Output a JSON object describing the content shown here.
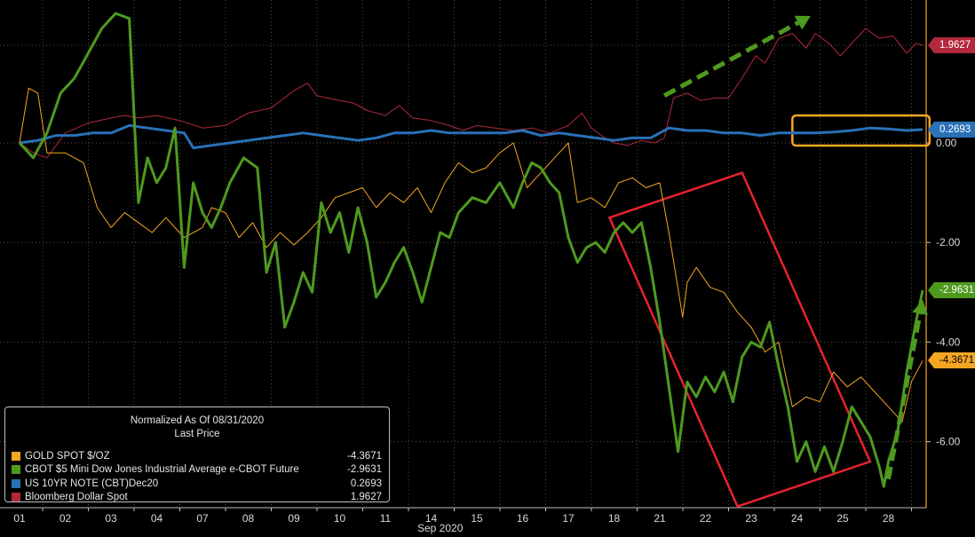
{
  "chart_data": {
    "type": "line",
    "legend": {
      "title_line1": "Normalized As Of 08/31/2020",
      "title_line2": "Last Price",
      "placement": "bottom-left"
    },
    "xlabel": "Sep 2020",
    "x_ticks": [
      "01",
      "02",
      "03",
      "04",
      "07",
      "08",
      "09",
      "10",
      "11",
      "14",
      "15",
      "16",
      "17",
      "18",
      "21",
      "22",
      "23",
      "24",
      "25",
      "28"
    ],
    "y_ticks": [
      "0.00",
      "-2.00",
      "-4.00",
      "-6.00"
    ],
    "y_tick_values": [
      0,
      -2,
      -4,
      -6
    ],
    "ylim": [
      -7.4,
      2.85
    ],
    "grid": true,
    "series": [
      {
        "name": "Bloomberg Dollar Spot",
        "last": "1.9627",
        "color": "#b3283c",
        "style": "thin",
        "points": [
          [
            0,
            0.0
          ],
          [
            0.3,
            -0.2
          ],
          [
            0.6,
            -0.3
          ],
          [
            1.0,
            0.2
          ],
          [
            1.5,
            0.4
          ],
          [
            2.0,
            0.5
          ],
          [
            2.3,
            0.55
          ],
          [
            2.6,
            0.5
          ],
          [
            3.0,
            0.55
          ],
          [
            3.5,
            0.45
          ],
          [
            4.0,
            0.3
          ],
          [
            4.5,
            0.35
          ],
          [
            5.0,
            0.6
          ],
          [
            5.5,
            0.7
          ],
          [
            6.0,
            1.05
          ],
          [
            6.3,
            1.2
          ],
          [
            6.5,
            0.95
          ],
          [
            7.0,
            0.85
          ],
          [
            7.3,
            0.8
          ],
          [
            7.6,
            0.65
          ],
          [
            8.0,
            0.55
          ],
          [
            8.3,
            0.75
          ],
          [
            8.6,
            0.5
          ],
          [
            9.0,
            0.45
          ],
          [
            9.4,
            0.35
          ],
          [
            9.7,
            0.25
          ],
          [
            10.0,
            0.35
          ],
          [
            10.4,
            0.3
          ],
          [
            10.8,
            0.25
          ],
          [
            11.2,
            0.3
          ],
          [
            11.6,
            0.2
          ],
          [
            12.0,
            0.35
          ],
          [
            12.3,
            0.6
          ],
          [
            12.5,
            0.3
          ],
          [
            12.8,
            0.1
          ],
          [
            13.0,
            0.0
          ],
          [
            13.3,
            -0.05
          ],
          [
            13.6,
            0.05
          ],
          [
            13.9,
            0.0
          ],
          [
            14.1,
            0.1
          ],
          [
            14.3,
            0.9
          ],
          [
            14.6,
            1.0
          ],
          [
            14.9,
            0.85
          ],
          [
            15.2,
            0.9
          ],
          [
            15.5,
            0.9
          ],
          [
            15.8,
            1.3
          ],
          [
            16.1,
            1.75
          ],
          [
            16.3,
            1.6
          ],
          [
            16.6,
            2.1
          ],
          [
            16.9,
            2.2
          ],
          [
            17.2,
            1.9
          ],
          [
            17.4,
            2.2
          ],
          [
            17.7,
            2.0
          ],
          [
            17.95,
            1.75
          ],
          [
            18.2,
            2.0
          ],
          [
            18.5,
            2.3
          ],
          [
            18.8,
            2.1
          ],
          [
            19.1,
            2.15
          ],
          [
            19.4,
            1.8
          ],
          [
            19.6,
            2.0
          ],
          [
            19.75,
            1.96
          ]
        ]
      },
      {
        "name": "US 10YR NOTE (CBT)Dec20",
        "last": "0.2693",
        "color": "#2a71b8",
        "style": "thick",
        "points": [
          [
            0,
            0.0
          ],
          [
            0.4,
            0.05
          ],
          [
            0.8,
            0.15
          ],
          [
            1.2,
            0.15
          ],
          [
            1.6,
            0.2
          ],
          [
            2.0,
            0.2
          ],
          [
            2.4,
            0.35
          ],
          [
            2.8,
            0.3
          ],
          [
            3.2,
            0.25
          ],
          [
            3.6,
            0.2
          ],
          [
            3.8,
            -0.1
          ],
          [
            4.2,
            -0.05
          ],
          [
            4.6,
            0.0
          ],
          [
            5.0,
            0.05
          ],
          [
            5.4,
            0.1
          ],
          [
            5.8,
            0.15
          ],
          [
            6.2,
            0.2
          ],
          [
            6.6,
            0.15
          ],
          [
            7.0,
            0.1
          ],
          [
            7.4,
            0.05
          ],
          [
            7.8,
            0.1
          ],
          [
            8.2,
            0.2
          ],
          [
            8.6,
            0.2
          ],
          [
            9.0,
            0.25
          ],
          [
            9.4,
            0.2
          ],
          [
            9.8,
            0.2
          ],
          [
            10.2,
            0.2
          ],
          [
            10.6,
            0.2
          ],
          [
            11.0,
            0.25
          ],
          [
            11.4,
            0.15
          ],
          [
            11.8,
            0.2
          ],
          [
            12.2,
            0.15
          ],
          [
            12.6,
            0.1
          ],
          [
            13.0,
            0.05
          ],
          [
            13.4,
            0.1
          ],
          [
            13.8,
            0.1
          ],
          [
            14.2,
            0.3
          ],
          [
            14.6,
            0.25
          ],
          [
            15.0,
            0.25
          ],
          [
            15.4,
            0.2
          ],
          [
            15.8,
            0.2
          ],
          [
            16.2,
            0.15
          ],
          [
            16.6,
            0.2
          ],
          [
            17.0,
            0.2
          ],
          [
            17.4,
            0.2
          ],
          [
            17.8,
            0.22
          ],
          [
            18.2,
            0.25
          ],
          [
            18.6,
            0.3
          ],
          [
            19.0,
            0.28
          ],
          [
            19.4,
            0.25
          ],
          [
            19.75,
            0.27
          ]
        ]
      },
      {
        "name": "GOLD SPOT $/OZ",
        "last": "-4.3671",
        "color": "#f5a623",
        "style": "thin",
        "points": [
          [
            0,
            0.0
          ],
          [
            0.2,
            1.1
          ],
          [
            0.4,
            1.0
          ],
          [
            0.6,
            -0.2
          ],
          [
            1.0,
            -0.2
          ],
          [
            1.4,
            -0.4
          ],
          [
            1.7,
            -1.3
          ],
          [
            2.0,
            -1.7
          ],
          [
            2.3,
            -1.4
          ],
          [
            2.6,
            -1.6
          ],
          [
            2.9,
            -1.8
          ],
          [
            3.2,
            -1.5
          ],
          [
            3.6,
            -1.9
          ],
          [
            4.0,
            -1.7
          ],
          [
            4.2,
            -1.3
          ],
          [
            4.5,
            -1.4
          ],
          [
            4.8,
            -1.9
          ],
          [
            5.1,
            -1.6
          ],
          [
            5.4,
            -2.1
          ],
          [
            5.7,
            -1.8
          ],
          [
            6.0,
            -2.05
          ],
          [
            6.3,
            -1.8
          ],
          [
            6.6,
            -1.5
          ],
          [
            6.9,
            -1.1
          ],
          [
            7.2,
            -1.0
          ],
          [
            7.5,
            -0.9
          ],
          [
            7.8,
            -1.3
          ],
          [
            8.1,
            -1.0
          ],
          [
            8.4,
            -1.2
          ],
          [
            8.7,
            -0.9
          ],
          [
            9.0,
            -1.4
          ],
          [
            9.3,
            -0.8
          ],
          [
            9.6,
            -0.4
          ],
          [
            9.9,
            -0.6
          ],
          [
            10.2,
            -0.5
          ],
          [
            10.5,
            -0.2
          ],
          [
            10.8,
            0.0
          ],
          [
            11.1,
            -0.9
          ],
          [
            11.4,
            -0.6
          ],
          [
            11.7,
            -0.3
          ],
          [
            12.0,
            0.0
          ],
          [
            12.2,
            -1.2
          ],
          [
            12.5,
            -1.1
          ],
          [
            12.8,
            -1.3
          ],
          [
            13.1,
            -0.8
          ],
          [
            13.4,
            -0.7
          ],
          [
            13.7,
            -0.9
          ],
          [
            14.0,
            -0.8
          ],
          [
            14.2,
            -1.8
          ],
          [
            14.5,
            -3.5
          ],
          [
            14.6,
            -2.8
          ],
          [
            14.8,
            -2.5
          ],
          [
            15.1,
            -2.9
          ],
          [
            15.4,
            -3.0
          ],
          [
            15.7,
            -3.4
          ],
          [
            16.0,
            -3.7
          ],
          [
            16.3,
            -4.2
          ],
          [
            16.6,
            -4.0
          ],
          [
            16.9,
            -5.3
          ],
          [
            17.2,
            -5.1
          ],
          [
            17.5,
            -5.2
          ],
          [
            17.8,
            -4.6
          ],
          [
            18.1,
            -4.9
          ],
          [
            18.4,
            -4.7
          ],
          [
            18.7,
            -5.0
          ],
          [
            19.0,
            -5.3
          ],
          [
            19.3,
            -5.6
          ],
          [
            19.5,
            -4.8
          ],
          [
            19.75,
            -4.37
          ]
        ]
      },
      {
        "name": "CBOT $5 Mini Dow Jones Industrial Average e-CBOT Future",
        "last": "-2.9631",
        "color": "#4e9a1f",
        "style": "thick",
        "points": [
          [
            0,
            0.0
          ],
          [
            0.3,
            -0.3
          ],
          [
            0.6,
            0.2
          ],
          [
            0.9,
            1.0
          ],
          [
            1.2,
            1.3
          ],
          [
            1.5,
            1.8
          ],
          [
            1.8,
            2.3
          ],
          [
            2.1,
            2.6
          ],
          [
            2.4,
            2.5
          ],
          [
            2.6,
            -1.2
          ],
          [
            2.8,
            -0.3
          ],
          [
            3.0,
            -0.8
          ],
          [
            3.2,
            -0.5
          ],
          [
            3.4,
            0.3
          ],
          [
            3.6,
            -2.5
          ],
          [
            3.8,
            -0.8
          ],
          [
            4.0,
            -1.4
          ],
          [
            4.2,
            -1.7
          ],
          [
            4.4,
            -1.3
          ],
          [
            4.6,
            -0.8
          ],
          [
            4.9,
            -0.3
          ],
          [
            5.2,
            -0.5
          ],
          [
            5.4,
            -2.6
          ],
          [
            5.6,
            -2.0
          ],
          [
            5.8,
            -3.7
          ],
          [
            6.0,
            -3.2
          ],
          [
            6.2,
            -2.6
          ],
          [
            6.4,
            -3.0
          ],
          [
            6.6,
            -1.2
          ],
          [
            6.8,
            -1.8
          ],
          [
            7.0,
            -1.4
          ],
          [
            7.2,
            -2.2
          ],
          [
            7.4,
            -1.3
          ],
          [
            7.6,
            -2.0
          ],
          [
            7.8,
            -3.1
          ],
          [
            8.0,
            -2.8
          ],
          [
            8.2,
            -2.4
          ],
          [
            8.4,
            -2.1
          ],
          [
            8.6,
            -2.6
          ],
          [
            8.8,
            -3.2
          ],
          [
            9.0,
            -2.5
          ],
          [
            9.2,
            -1.8
          ],
          [
            9.4,
            -1.9
          ],
          [
            9.6,
            -1.4
          ],
          [
            9.9,
            -1.1
          ],
          [
            10.2,
            -1.2
          ],
          [
            10.5,
            -0.8
          ],
          [
            10.8,
            -1.3
          ],
          [
            11.0,
            -0.8
          ],
          [
            11.2,
            -0.4
          ],
          [
            11.4,
            -0.5
          ],
          [
            11.6,
            -0.8
          ],
          [
            11.8,
            -1.0
          ],
          [
            12.0,
            -1.9
          ],
          [
            12.2,
            -2.4
          ],
          [
            12.4,
            -2.1
          ],
          [
            12.6,
            -2.0
          ],
          [
            12.8,
            -2.2
          ],
          [
            13.0,
            -1.8
          ],
          [
            13.2,
            -1.6
          ],
          [
            13.4,
            -1.8
          ],
          [
            13.6,
            -1.6
          ],
          [
            13.8,
            -2.5
          ],
          [
            14.0,
            -3.6
          ],
          [
            14.2,
            -4.9
          ],
          [
            14.4,
            -6.2
          ],
          [
            14.6,
            -4.8
          ],
          [
            14.8,
            -5.1
          ],
          [
            15.0,
            -4.7
          ],
          [
            15.2,
            -5.0
          ],
          [
            15.4,
            -4.6
          ],
          [
            15.6,
            -5.2
          ],
          [
            15.8,
            -4.3
          ],
          [
            16.0,
            -4.0
          ],
          [
            16.2,
            -4.1
          ],
          [
            16.4,
            -3.6
          ],
          [
            16.6,
            -4.5
          ],
          [
            16.8,
            -5.3
          ],
          [
            17.0,
            -6.4
          ],
          [
            17.2,
            -6.0
          ],
          [
            17.4,
            -6.6
          ],
          [
            17.6,
            -6.1
          ],
          [
            17.8,
            -6.6
          ],
          [
            18.0,
            -6.0
          ],
          [
            18.2,
            -5.3
          ],
          [
            18.4,
            -5.6
          ],
          [
            18.6,
            -5.9
          ],
          [
            18.8,
            -6.5
          ],
          [
            18.9,
            -6.9
          ],
          [
            19.0,
            -6.4
          ],
          [
            19.2,
            -5.8
          ],
          [
            19.3,
            -5.2
          ],
          [
            19.4,
            -4.6
          ],
          [
            19.6,
            -3.6
          ],
          [
            19.75,
            -2.96
          ]
        ]
      }
    ],
    "annotations": [
      {
        "type": "dashed-arrow",
        "color": "#4e9a1f",
        "from": [
          14.1,
          0.95
        ],
        "to": [
          17.3,
          2.55
        ]
      },
      {
        "type": "dashed-arrow",
        "color": "#4e9a1f",
        "from": [
          19.0,
          -6.75
        ],
        "to": [
          19.75,
          -3.15
        ]
      },
      {
        "type": "rotated-rectangle",
        "color": "#e8222e",
        "corners": [
          [
            12.9,
            -1.5
          ],
          [
            15.8,
            -0.6
          ],
          [
            18.6,
            -6.4
          ],
          [
            15.7,
            -7.3
          ]
        ]
      },
      {
        "type": "rectangle",
        "color": "#f5a623",
        "from": [
          16.9,
          0.55
        ],
        "to": [
          19.9,
          0.0
        ]
      }
    ]
  }
}
